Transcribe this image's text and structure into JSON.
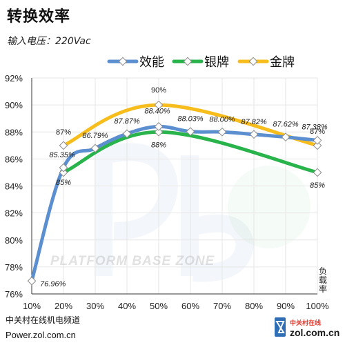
{
  "header": {
    "title": "转换效率",
    "subtitle": "输入电压：220Vac"
  },
  "watermark": {
    "text": "PLATFORM BASE ZONE"
  },
  "footer": {
    "source": "中关村在线机电频道",
    "url": "Power.zol.com.cn",
    "logo_cn": "中关村在线",
    "logo_en": "zol.com.cn"
  },
  "colors": {
    "efficiency": "#5b8fd0",
    "silver": "#28b34b",
    "gold": "#f7bd1d",
    "grid": "#e6e6e6",
    "axis": "#333333"
  },
  "chart_data": {
    "type": "line",
    "xlabel": "负载率",
    "ylim": [
      76,
      92
    ],
    "y_ticks": [
      "76%",
      "78%",
      "80%",
      "82%",
      "84%",
      "86%",
      "88%",
      "90%",
      "92%"
    ],
    "categories": [
      "10%",
      "20%",
      "30%",
      "40%",
      "50%",
      "60%",
      "70%",
      "80%",
      "90%",
      "100%"
    ],
    "legend_position": "top-center",
    "grid": true,
    "series": [
      {
        "name": "效能",
        "color_key": "efficiency",
        "x": [
          "10%",
          "20%",
          "30%",
          "40%",
          "50%",
          "60%",
          "70%",
          "80%",
          "90%",
          "100%"
        ],
        "values": [
          76.96,
          85.35,
          86.79,
          87.87,
          88.4,
          88.03,
          88.0,
          87.82,
          87.62,
          87.38
        ],
        "labels": [
          "76.96%",
          "85.35%",
          "86.79%",
          "87.87%",
          "88.40%",
          "88.03%",
          "88.00%",
          "87.82%",
          "87.62%",
          "87.38%"
        ]
      },
      {
        "name": "银牌",
        "color_key": "silver",
        "x": [
          "20%",
          "50%",
          "100%"
        ],
        "values": [
          85,
          88,
          85
        ],
        "labels": [
          "85%",
          "88%",
          "85%"
        ]
      },
      {
        "name": "金牌",
        "color_key": "gold",
        "x": [
          "20%",
          "50%",
          "100%"
        ],
        "values": [
          87,
          90,
          87
        ],
        "labels": [
          "87%",
          "90%",
          "87%"
        ]
      }
    ]
  }
}
